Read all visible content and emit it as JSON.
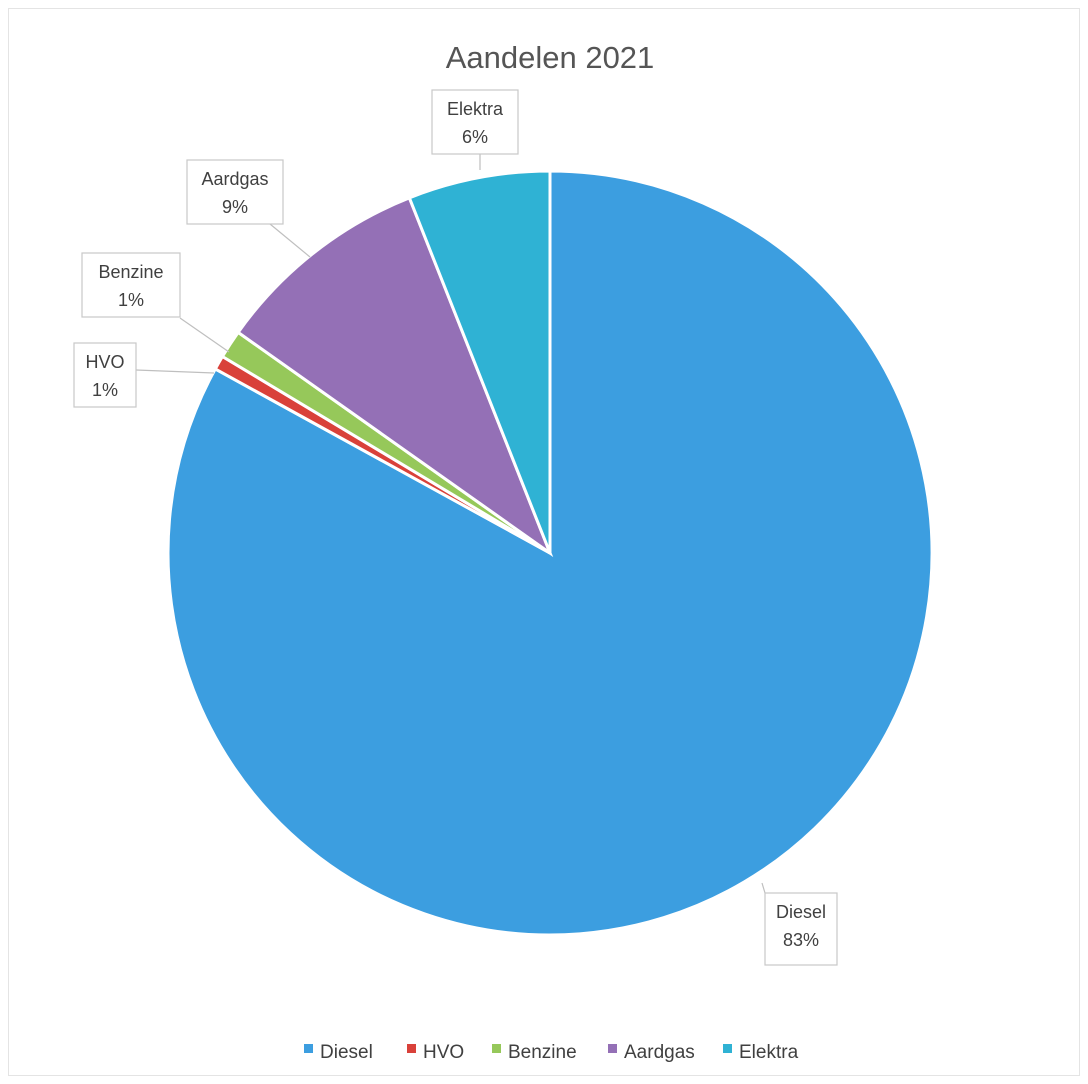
{
  "chart_data": {
    "type": "pie",
    "title": "Aandelen 2021",
    "slices": [
      {
        "name": "Diesel",
        "value": 83,
        "label": "83%",
        "color": "#3c9ee0"
      },
      {
        "name": "HVO",
        "value": 0.6,
        "label": "1%",
        "color": "#d9413a"
      },
      {
        "name": "Benzine",
        "value": 1.2,
        "label": "1%",
        "color": "#96c85a"
      },
      {
        "name": "Aardgas",
        "value": 9.2,
        "label": "9%",
        "color": "#9470b6"
      },
      {
        "name": "Elektra",
        "value": 6,
        "label": "6%",
        "color": "#2fb2d4"
      }
    ],
    "legend_position": "bottom"
  }
}
